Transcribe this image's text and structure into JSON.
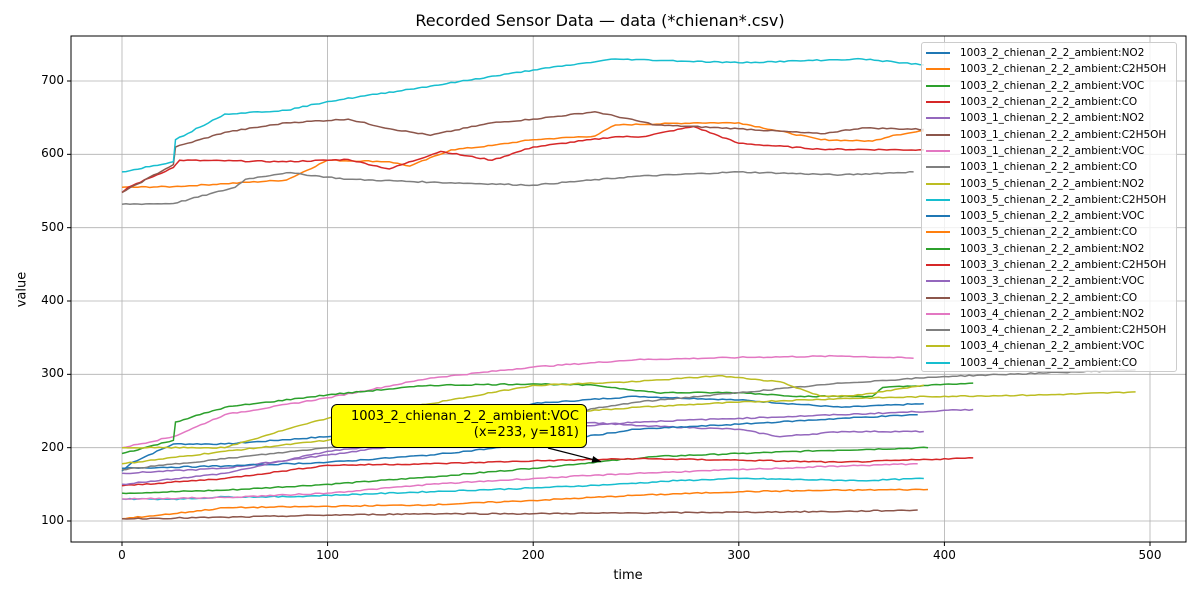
{
  "chart_data": {
    "type": "line",
    "title": "Recorded Sensor Data — data (*chienan*.csv)",
    "xlabel": "time",
    "ylabel": "value",
    "xlim": [
      -25,
      520
    ],
    "ylim": [
      70,
      765
    ],
    "xticks": [
      0,
      100,
      200,
      300,
      400,
      500
    ],
    "yticks": [
      100,
      200,
      300,
      400,
      500,
      600,
      700
    ],
    "grid": true,
    "legend_position": "upper right",
    "series": [
      {
        "name": "1003_2_chienan_2_2_ambient:NO2",
        "color": "#1f77b4",
        "x": [
          0,
          5,
          25,
          50,
          100,
          150,
          200,
          250,
          300,
          350,
          390
        ],
        "values": [
          168,
          180,
          205,
          205,
          215,
          235,
          260,
          270,
          265,
          255,
          260
        ]
      },
      {
        "name": "1003_2_chienan_2_2_ambient:C2H5OH",
        "color": "#ff7f0e",
        "x": [
          0,
          25,
          50,
          80,
          100,
          130,
          140,
          160,
          180,
          200,
          230,
          240,
          280,
          300,
          340,
          365,
          375,
          390
        ],
        "values": [
          555,
          556,
          560,
          565,
          592,
          590,
          584,
          606,
          612,
          620,
          625,
          640,
          643,
          643,
          620,
          618,
          626,
          632
        ]
      },
      {
        "name": "1003_2_chienan_2_2_ambient:VOC",
        "color": "#2ca02c",
        "x": [
          0,
          50,
          100,
          150,
          200,
          233,
          260,
          300,
          340,
          392
        ],
        "values": [
          138,
          142,
          150,
          160,
          172,
          181,
          188,
          192,
          196,
          200
        ]
      },
      {
        "name": "1003_2_chienan_2_2_ambient:CO",
        "color": "#d62728",
        "x": [
          0,
          3,
          25,
          28,
          80,
          110,
          130,
          155,
          180,
          200,
          240,
          253,
          278,
          300,
          340,
          390
        ],
        "values": [
          548,
          555,
          582,
          592,
          590,
          593,
          580,
          604,
          592,
          610,
          624,
          624,
          638,
          615,
          607,
          606
        ]
      },
      {
        "name": "1003_1_chienan_2_2_ambient:NO2",
        "color": "#9467bd",
        "x": [
          0,
          50,
          100,
          140,
          150,
          200,
          250,
          300,
          320,
          350,
          390
        ],
        "values": [
          165,
          172,
          190,
          205,
          225,
          240,
          230,
          225,
          215,
          222,
          222
        ]
      },
      {
        "name": "1003_1_chienan_2_2_ambient:C2H5OH",
        "color": "#8c564b",
        "x": [
          0,
          25,
          26,
          50,
          80,
          110,
          130,
          150,
          180,
          200,
          230,
          260,
          300,
          340,
          360,
          390
        ],
        "values": [
          548,
          586,
          610,
          630,
          643,
          648,
          635,
          626,
          643,
          648,
          658,
          640,
          635,
          628,
          636,
          634
        ]
      },
      {
        "name": "1003_1_chienan_2_2_ambient:VOC",
        "color": "#e377c2",
        "x": [
          0,
          25,
          50,
          100,
          150,
          200,
          250,
          300,
          350,
          385
        ],
        "values": [
          200,
          215,
          245,
          268,
          295,
          310,
          320,
          323,
          325,
          322
        ]
      },
      {
        "name": "1003_1_chienan_2_2_ambient:CO",
        "color": "#7f7f7f",
        "x": [
          0,
          25,
          55,
          60,
          80,
          110,
          150,
          200,
          250,
          300,
          350,
          385
        ],
        "values": [
          532,
          533,
          555,
          566,
          575,
          566,
          562,
          558,
          570,
          576,
          572,
          576
        ]
      },
      {
        "name": "1003_5_chienan_2_2_ambient:NO2",
        "color": "#bcbd22",
        "x": [
          0,
          50,
          100,
          150,
          200,
          250,
          300,
          350,
          400,
          450,
          493
        ],
        "values": [
          178,
          195,
          210,
          230,
          245,
          255,
          262,
          267,
          270,
          272,
          276
        ]
      },
      {
        "name": "1003_5_chienan_2_2_ambient:C2H5OH",
        "color": "#17becf",
        "x": [
          0,
          25,
          30,
          50,
          80,
          100,
          150,
          200,
          240,
          270,
          300,
          360,
          390
        ],
        "values": [
          130,
          130,
          130,
          133,
          133,
          135,
          140,
          145,
          150,
          155,
          158,
          155,
          158
        ]
      },
      {
        "name": "1003_5_chienan_2_2_ambient:VOC",
        "color": "#1f77b4",
        "x": [
          0,
          50,
          100,
          150,
          200,
          250,
          300,
          350,
          387
        ],
        "values": [
          172,
          175,
          180,
          190,
          205,
          225,
          232,
          240,
          245
        ]
      },
      {
        "name": "1003_5_chienan_2_2_ambient:CO",
        "color": "#ff7f0e",
        "x": [
          0,
          25,
          50,
          100,
          150,
          200,
          250,
          300,
          350,
          392
        ],
        "values": [
          103,
          110,
          118,
          120,
          122,
          128,
          135,
          140,
          142,
          143
        ]
      },
      {
        "name": "1003_3_chienan_2_2_ambient:NO2",
        "color": "#2ca02c",
        "x": [
          0,
          25,
          26,
          50,
          100,
          130,
          150,
          200,
          230,
          260,
          300,
          330,
          365,
          370,
          414
        ],
        "values": [
          192,
          210,
          235,
          255,
          272,
          280,
          285,
          287,
          285,
          275,
          275,
          270,
          270,
          282,
          288
        ]
      },
      {
        "name": "1003_3_chienan_2_2_ambient:C2H5OH",
        "color": "#d62728",
        "x": [
          0,
          50,
          100,
          150,
          200,
          250,
          300,
          350,
          414
        ],
        "values": [
          148,
          158,
          176,
          178,
          182,
          185,
          183,
          180,
          186
        ]
      },
      {
        "name": "1003_3_chienan_2_2_ambient:VOC",
        "color": "#9467bd",
        "x": [
          0,
          50,
          100,
          150,
          200,
          250,
          300,
          350,
          414
        ],
        "values": [
          150,
          165,
          195,
          210,
          225,
          235,
          240,
          245,
          252
        ]
      },
      {
        "name": "1003_3_chienan_2_2_ambient:CO",
        "color": "#8c564b",
        "x": [
          0,
          50,
          100,
          150,
          200,
          250,
          300,
          350,
          387
        ],
        "values": [
          103,
          105,
          108,
          110,
          110,
          111,
          112,
          113,
          115
        ]
      },
      {
        "name": "1003_4_chienan_2_2_ambient:NO2",
        "color": "#e377c2",
        "x": [
          0,
          50,
          100,
          150,
          200,
          250,
          300,
          350,
          387
        ],
        "values": [
          130,
          132,
          138,
          150,
          158,
          165,
          170,
          175,
          178
        ]
      },
      {
        "name": "1003_4_chienan_2_2_ambient:C2H5OH",
        "color": "#7f7f7f",
        "x": [
          0,
          50,
          100,
          150,
          200,
          250,
          300,
          350,
          400,
          450,
          493
        ],
        "values": [
          170,
          185,
          200,
          215,
          240,
          262,
          275,
          288,
          297,
          302,
          306
        ]
      },
      {
        "name": "1003_4_chienan_2_2_ambient:VOC",
        "color": "#bcbd22",
        "x": [
          0,
          20,
          50,
          80,
          100,
          150,
          200,
          250,
          290,
          320,
          340,
          360,
          390
        ],
        "values": [
          200,
          200,
          200,
          225,
          240,
          260,
          285,
          290,
          298,
          290,
          270,
          272,
          285
        ]
      },
      {
        "name": "1003_4_chienan_2_2_ambient:CO",
        "color": "#17becf",
        "x": [
          0,
          25,
          26,
          50,
          80,
          100,
          150,
          200,
          240,
          300,
          360,
          390
        ],
        "values": [
          576,
          590,
          620,
          655,
          660,
          672,
          693,
          715,
          730,
          725,
          730,
          722
        ]
      }
    ],
    "annotation": {
      "label": "1003_2_chienan_2_2_ambient:VOC",
      "coords": "(x=233, y=181)",
      "x": 233,
      "y": 181,
      "background": "#ffff00"
    }
  },
  "ui": {
    "title": "Recorded Sensor Data — data (*chienan*.csv)",
    "xlabel": "time",
    "ylabel": "value",
    "xticks": [
      "0",
      "100",
      "200",
      "300",
      "400",
      "500"
    ],
    "yticks": [
      "100",
      "200",
      "300",
      "400",
      "500",
      "600",
      "700"
    ],
    "annotation_line1": "1003_2_chienan_2_2_ambient:VOC",
    "annotation_line2": "(x=233, y=181)"
  }
}
